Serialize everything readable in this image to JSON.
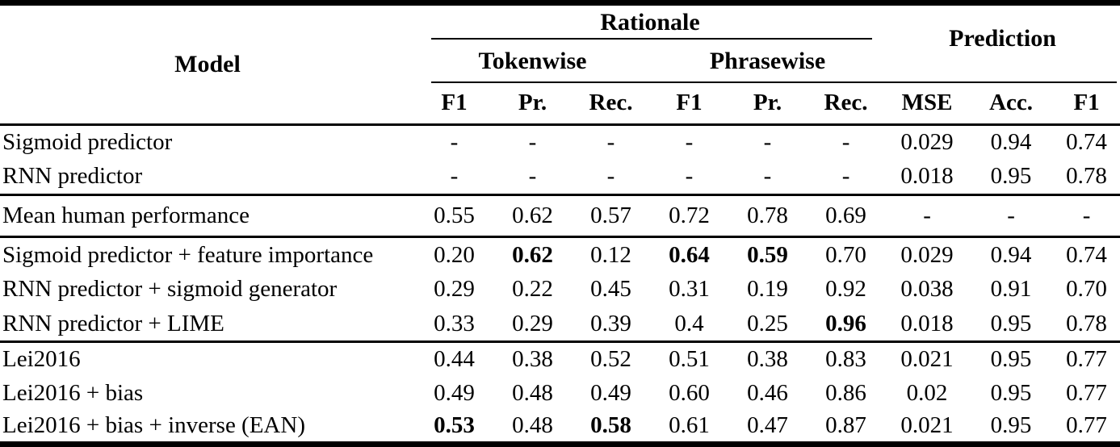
{
  "table": {
    "header": {
      "model": "Model",
      "rationale": "Rationale",
      "prediction": "Prediction",
      "tokenwise": "Tokenwise",
      "phrasewise": "Phrasewise",
      "metrics": [
        "F1",
        "Pr.",
        "Rec.",
        "F1",
        "Pr.",
        "Rec.",
        "MSE",
        "Acc.",
        "F1"
      ]
    },
    "sections": [
      {
        "rows": [
          {
            "model": "Sigmoid predictor",
            "values": [
              "-",
              "-",
              "-",
              "-",
              "-",
              "-",
              "0.029",
              "0.94",
              "0.74"
            ],
            "bold": []
          },
          {
            "model": "RNN predictor",
            "values": [
              "-",
              "-",
              "-",
              "-",
              "-",
              "-",
              "0.018",
              "0.95",
              "0.78"
            ],
            "bold": []
          }
        ]
      },
      {
        "rows": [
          {
            "model": "Mean human performance",
            "values": [
              "0.55",
              "0.62",
              "0.57",
              "0.72",
              "0.78",
              "0.69",
              "-",
              "-",
              "-"
            ],
            "bold": []
          }
        ]
      },
      {
        "rows": [
          {
            "model": "Sigmoid predictor + feature importance",
            "values": [
              "0.20",
              "0.62",
              "0.12",
              "0.64",
              "0.59",
              "0.70",
              "0.029",
              "0.94",
              "0.74"
            ],
            "bold": [
              1,
              3,
              4
            ]
          },
          {
            "model": "RNN predictor + sigmoid generator",
            "values": [
              "0.29",
              "0.22",
              "0.45",
              "0.31",
              "0.19",
              "0.92",
              "0.038",
              "0.91",
              "0.70"
            ],
            "bold": []
          },
          {
            "model": "RNN predictor + LIME",
            "values": [
              "0.33",
              "0.29",
              "0.39",
              "0.4",
              "0.25",
              "0.96",
              "0.018",
              "0.95",
              "0.78"
            ],
            "bold": [
              5
            ]
          }
        ]
      },
      {
        "rows": [
          {
            "model": "Lei2016",
            "values": [
              "0.44",
              "0.38",
              "0.52",
              "0.51",
              "0.38",
              "0.83",
              "0.021",
              "0.95",
              "0.77"
            ],
            "bold": []
          },
          {
            "model": "Lei2016 + bias",
            "values": [
              "0.49",
              "0.48",
              "0.49",
              "0.60",
              "0.46",
              "0.86",
              "0.02",
              "0.95",
              "0.77"
            ],
            "bold": []
          },
          {
            "model": "Lei2016 + bias + inverse (EAN)",
            "values": [
              "0.53",
              "0.48",
              "0.58",
              "0.61",
              "0.47",
              "0.87",
              "0.021",
              "0.95",
              "0.77"
            ],
            "bold": [
              0,
              2
            ]
          }
        ]
      }
    ]
  }
}
